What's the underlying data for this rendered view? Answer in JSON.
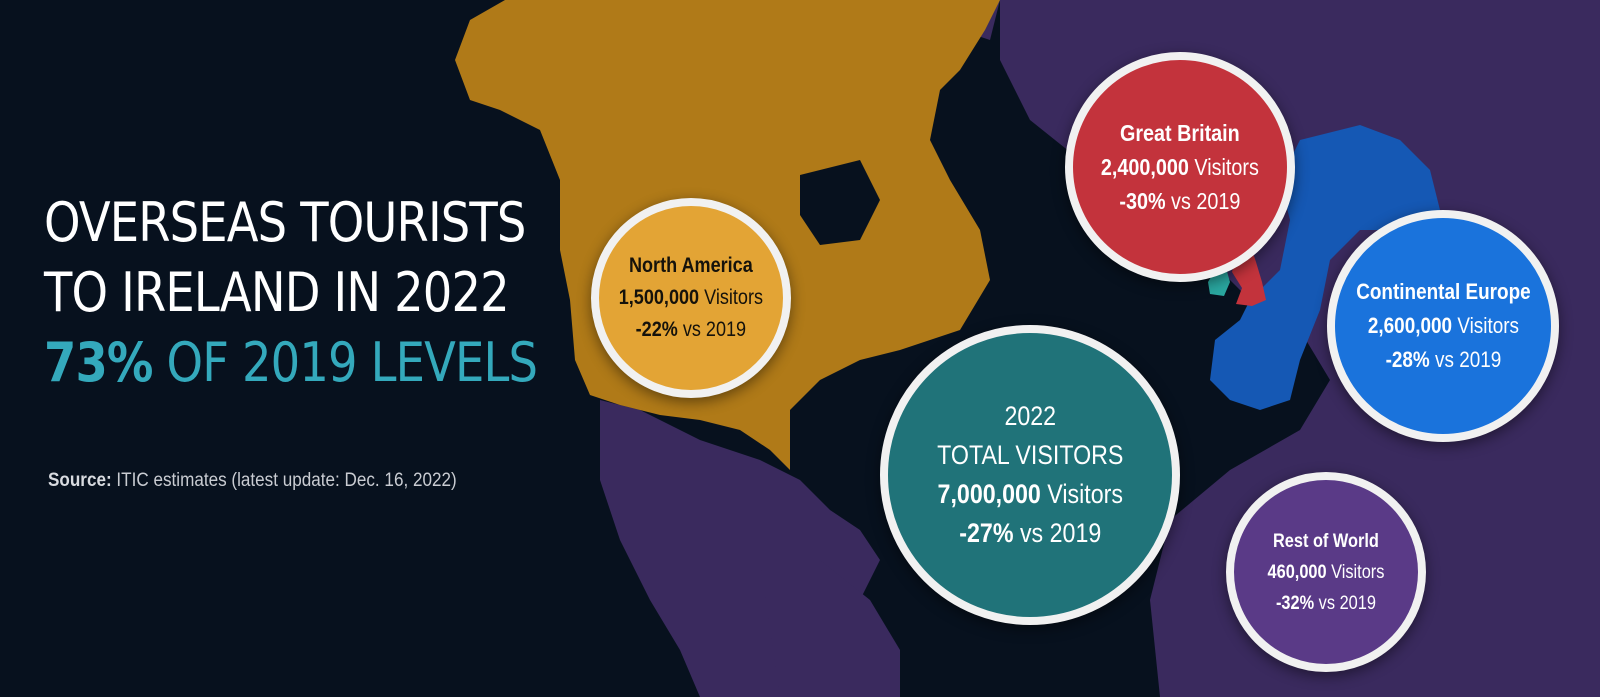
{
  "headline": {
    "line1": "OVERSEAS TOURISTS",
    "line2": "TO IRELAND IN 2022",
    "accent_value": "73%",
    "accent_rest": "OF 2019 LEVELS"
  },
  "source": {
    "label": "Source:",
    "text": "ITIC estimates (latest update: Dec. 16, 2022)"
  },
  "regions": {
    "north_america": {
      "name": "North America",
      "visitors": "1,500,000",
      "visitors_word": "Visitors",
      "change": "-22%",
      "change_rest": "vs 2019"
    },
    "great_britain": {
      "name": "Great Britain",
      "visitors": "2,400,000",
      "visitors_word": "Visitors",
      "change": "-30%",
      "change_rest": "vs 2019"
    },
    "continental_europe": {
      "name": "Continental Europe",
      "visitors": "2,600,000",
      "visitors_word": "Visitors",
      "change": "-28%",
      "change_rest": "vs 2019"
    },
    "rest_of_world": {
      "name": "Rest of World",
      "visitors": "460,000",
      "visitors_word": "Visitors",
      "change": "-32%",
      "change_rest": "vs 2019"
    }
  },
  "total": {
    "year": "2022",
    "label": "TOTAL VISITORS",
    "visitors": "7,000,000",
    "visitors_word": "Visitors",
    "change": "-27%",
    "change_rest": "vs 2019"
  },
  "colors": {
    "background": "#07111e",
    "north_america": "#e3a435",
    "great_britain": "#c3333c",
    "continental_europe": "#1a73dc",
    "rest_of_world": "#5a3a87",
    "total": "#207379",
    "accent": "#34a9bc",
    "ireland": "#2aa7a0"
  }
}
